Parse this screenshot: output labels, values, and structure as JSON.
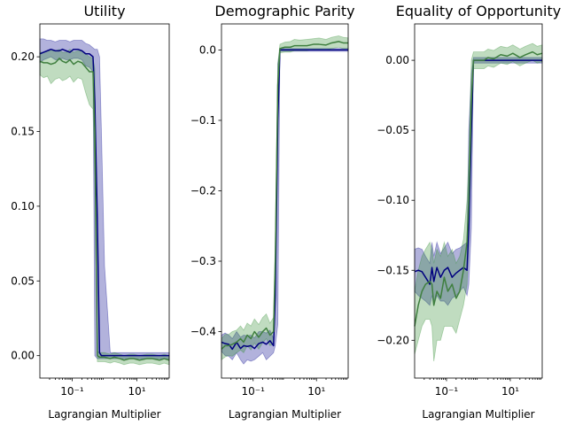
{
  "colors": {
    "blue_line": "#00007f",
    "blue_band": "#00008b",
    "green_line": "#3f7f3f",
    "green_band": "#2e8b2e"
  },
  "chart_data": [
    {
      "type": "line",
      "title": "Utility",
      "xlabel": "Lagrangian Multiplier",
      "ylabel": "",
      "xscale": "log",
      "xlim": [
        0.01,
        100
      ],
      "ylim": [
        -0.015,
        0.222
      ],
      "xticks": [
        {
          "v": 0.1,
          "label": "10⁻¹"
        },
        {
          "v": 10,
          "label": "10¹"
        }
      ],
      "yticks": [
        {
          "v": 0.2,
          "label": "0.20"
        },
        {
          "v": 0.15,
          "label": "0.15"
        },
        {
          "v": 0.1,
          "label": "0.10"
        },
        {
          "v": 0.05,
          "label": "0.05"
        },
        {
          "v": 0.0,
          "label": "0.00"
        }
      ],
      "grid": false,
      "series": [
        {
          "color_key": "blue",
          "x": [
            0.01,
            0.013,
            0.017,
            0.022,
            0.03,
            0.04,
            0.05,
            0.065,
            0.085,
            0.11,
            0.15,
            0.2,
            0.26,
            0.34,
            0.44,
            0.5,
            0.6,
            0.7,
            0.8,
            1,
            1.5,
            3,
            8,
            20,
            50,
            100
          ],
          "values": [
            0.202,
            0.203,
            0.204,
            0.205,
            0.204,
            0.204,
            0.205,
            0.204,
            0.203,
            0.205,
            0.205,
            0.204,
            0.202,
            0.202,
            0.2,
            0.17,
            0.09,
            0.002,
            0.0,
            0.0,
            0.0,
            0.0,
            0.0,
            0.0,
            0.0,
            0.0
          ],
          "lower": [
            0.196,
            0.198,
            0.199,
            0.2,
            0.198,
            0.198,
            0.199,
            0.198,
            0.198,
            0.199,
            0.199,
            0.198,
            0.194,
            0.193,
            0.19,
            0.0,
            -0.002,
            -0.002,
            -0.002,
            -0.002,
            -0.002,
            -0.002,
            -0.002,
            -0.002,
            -0.002,
            -0.002
          ],
          "upper": [
            0.212,
            0.212,
            0.211,
            0.211,
            0.21,
            0.211,
            0.211,
            0.211,
            0.21,
            0.211,
            0.211,
            0.211,
            0.209,
            0.208,
            0.206,
            0.205,
            0.205,
            0.2,
            0.15,
            0.06,
            0.002,
            0.002,
            0.002,
            0.002,
            0.002,
            0.002
          ]
        },
        {
          "color_key": "green",
          "x": [
            0.01,
            0.013,
            0.017,
            0.022,
            0.03,
            0.04,
            0.05,
            0.065,
            0.085,
            0.11,
            0.15,
            0.2,
            0.26,
            0.34,
            0.44,
            0.5,
            0.6,
            0.7,
            0.8,
            1,
            1.5,
            2,
            3,
            4,
            6,
            8,
            12,
            20,
            30,
            50,
            70,
            100
          ],
          "values": [
            0.197,
            0.196,
            0.196,
            0.195,
            0.196,
            0.199,
            0.197,
            0.196,
            0.198,
            0.195,
            0.197,
            0.196,
            0.193,
            0.19,
            0.19,
            0.15,
            0.0,
            -0.001,
            -0.001,
            -0.001,
            -0.002,
            -0.001,
            -0.002,
            -0.003,
            -0.002,
            -0.002,
            -0.003,
            -0.002,
            -0.002,
            -0.003,
            -0.002,
            -0.003
          ],
          "lower": [
            0.188,
            0.186,
            0.187,
            0.182,
            0.185,
            0.186,
            0.184,
            0.185,
            0.187,
            0.183,
            0.186,
            0.185,
            0.176,
            0.168,
            0.165,
            0.12,
            -0.004,
            -0.004,
            -0.004,
            -0.004,
            -0.005,
            -0.004,
            -0.005,
            -0.006,
            -0.005,
            -0.005,
            -0.006,
            -0.005,
            -0.005,
            -0.006,
            -0.005,
            -0.006
          ],
          "upper": [
            0.203,
            0.203,
            0.204,
            0.204,
            0.204,
            0.205,
            0.203,
            0.203,
            0.205,
            0.203,
            0.204,
            0.204,
            0.202,
            0.2,
            0.199,
            0.192,
            0.003,
            0.002,
            0.002,
            0.002,
            0.001,
            0.002,
            0.001,
            0.0,
            0.001,
            0.001,
            0.0,
            0.001,
            0.001,
            0.0,
            0.001,
            0.0
          ]
        }
      ]
    },
    {
      "type": "line",
      "title": "Demographic Parity",
      "xlabel": "Lagrangian Multiplier",
      "ylabel": "",
      "xscale": "log",
      "xlim": [
        0.01,
        100
      ],
      "ylim": [
        -0.466,
        0.037
      ],
      "xticks": [
        {
          "v": 0.1,
          "label": "10⁻¹"
        },
        {
          "v": 10,
          "label": "10¹"
        }
      ],
      "yticks": [
        {
          "v": 0.0,
          "label": "0.0"
        },
        {
          "v": -0.1,
          "label": "−0.1"
        },
        {
          "v": -0.2,
          "label": "−0.2"
        },
        {
          "v": -0.3,
          "label": "−0.3"
        },
        {
          "v": -0.4,
          "label": "−0.4"
        }
      ],
      "grid": false,
      "series": [
        {
          "color_key": "blue",
          "x": [
            0.01,
            0.013,
            0.017,
            0.022,
            0.03,
            0.04,
            0.05,
            0.065,
            0.085,
            0.11,
            0.15,
            0.2,
            0.26,
            0.34,
            0.44,
            0.5,
            0.6,
            0.7,
            1,
            2,
            5,
            10,
            20,
            50,
            100
          ],
          "values": [
            -0.415,
            -0.417,
            -0.418,
            -0.425,
            -0.415,
            -0.424,
            -0.42,
            -0.421,
            -0.42,
            -0.424,
            -0.417,
            -0.415,
            -0.418,
            -0.413,
            -0.42,
            -0.35,
            -0.1,
            0.0,
            0.0,
            0.0,
            0.0,
            0.0,
            0.0,
            0.0,
            0.0
          ],
          "lower": [
            -0.428,
            -0.434,
            -0.435,
            -0.44,
            -0.43,
            -0.44,
            -0.446,
            -0.44,
            -0.442,
            -0.44,
            -0.435,
            -0.43,
            -0.44,
            -0.435,
            -0.43,
            -0.42,
            -0.39,
            -0.002,
            -0.002,
            -0.002,
            -0.002,
            -0.002,
            -0.002,
            -0.002,
            -0.002
          ],
          "upper": [
            -0.405,
            -0.402,
            -0.405,
            -0.41,
            -0.4,
            -0.408,
            -0.405,
            -0.406,
            -0.405,
            -0.409,
            -0.4,
            -0.4,
            -0.402,
            -0.398,
            -0.41,
            -0.3,
            -0.02,
            0.002,
            0.002,
            0.002,
            0.002,
            0.002,
            0.002,
            0.002,
            0.002
          ]
        },
        {
          "color_key": "green",
          "x": [
            0.01,
            0.013,
            0.017,
            0.022,
            0.03,
            0.04,
            0.05,
            0.065,
            0.085,
            0.11,
            0.15,
            0.2,
            0.26,
            0.34,
            0.44,
            0.5,
            0.6,
            0.7,
            1,
            1.5,
            2,
            3,
            5,
            8,
            12,
            20,
            30,
            50,
            70,
            100
          ],
          "values": [
            -0.425,
            -0.42,
            -0.42,
            -0.418,
            -0.415,
            -0.41,
            -0.415,
            -0.405,
            -0.41,
            -0.4,
            -0.408,
            -0.4,
            -0.395,
            -0.405,
            -0.4,
            -0.3,
            -0.05,
            0.002,
            0.004,
            0.004,
            0.006,
            0.006,
            0.006,
            0.008,
            0.008,
            0.007,
            0.01,
            0.012,
            0.01,
            0.01
          ],
          "lower": [
            -0.44,
            -0.436,
            -0.434,
            -0.435,
            -0.43,
            -0.426,
            -0.43,
            -0.42,
            -0.426,
            -0.416,
            -0.425,
            -0.416,
            -0.41,
            -0.42,
            -0.418,
            -0.33,
            -0.08,
            -0.004,
            -0.003,
            -0.003,
            -0.001,
            -0.001,
            -0.001,
            0.001,
            0.001,
            0.0,
            0.002,
            0.004,
            0.002,
            0.002
          ],
          "upper": [
            -0.41,
            -0.404,
            -0.404,
            -0.4,
            -0.398,
            -0.392,
            -0.398,
            -0.388,
            -0.392,
            -0.382,
            -0.39,
            -0.38,
            -0.375,
            -0.388,
            -0.38,
            -0.27,
            -0.02,
            0.008,
            0.011,
            0.012,
            0.015,
            0.014,
            0.015,
            0.016,
            0.017,
            0.015,
            0.018,
            0.02,
            0.018,
            0.017
          ]
        }
      ]
    },
    {
      "type": "line",
      "title": "Equality of Opportunity",
      "xlabel": "Lagrangian Multiplier",
      "ylabel": "",
      "xscale": "log",
      "xlim": [
        0.01,
        100
      ],
      "ylim": [
        -0.227,
        0.026
      ],
      "xticks": [
        {
          "v": 0.1,
          "label": "10⁻¹"
        },
        {
          "v": 10,
          "label": "10¹"
        }
      ],
      "yticks": [
        {
          "v": 0.0,
          "label": "0.00"
        },
        {
          "v": -0.05,
          "label": "−0.05"
        },
        {
          "v": -0.1,
          "label": "−0.10"
        },
        {
          "v": -0.15,
          "label": "−0.15"
        },
        {
          "v": -0.2,
          "label": "−0.20"
        }
      ],
      "grid": false,
      "series": [
        {
          "color_key": "blue",
          "x": [
            0.01,
            0.013,
            0.017,
            0.022,
            0.03,
            0.035,
            0.04,
            0.05,
            0.065,
            0.085,
            0.11,
            0.15,
            0.2,
            0.26,
            0.34,
            0.44,
            0.5,
            0.6,
            0.7,
            1,
            2,
            5,
            10,
            20,
            50,
            100
          ],
          "values": [
            -0.151,
            -0.15,
            -0.151,
            -0.155,
            -0.16,
            -0.148,
            -0.158,
            -0.148,
            -0.155,
            -0.15,
            -0.148,
            -0.155,
            -0.152,
            -0.15,
            -0.148,
            -0.15,
            -0.12,
            -0.05,
            0.0,
            0.0,
            0.0,
            0.0,
            0.0,
            0.0,
            0.0,
            0.0
          ],
          "lower": [
            -0.165,
            -0.168,
            -0.17,
            -0.172,
            -0.175,
            -0.168,
            -0.175,
            -0.168,
            -0.172,
            -0.172,
            -0.175,
            -0.17,
            -0.168,
            -0.165,
            -0.162,
            -0.168,
            -0.16,
            -0.12,
            -0.002,
            -0.002,
            -0.002,
            -0.002,
            -0.002,
            -0.002,
            -0.002,
            -0.002
          ],
          "upper": [
            -0.135,
            -0.134,
            -0.135,
            -0.14,
            -0.145,
            -0.13,
            -0.14,
            -0.13,
            -0.138,
            -0.134,
            -0.13,
            -0.138,
            -0.135,
            -0.134,
            -0.132,
            -0.13,
            -0.05,
            -0.01,
            0.002,
            0.002,
            0.002,
            0.002,
            0.002,
            0.002,
            0.002,
            0.002
          ]
        },
        {
          "color_key": "green",
          "x": [
            0.01,
            0.013,
            0.017,
            0.022,
            0.03,
            0.035,
            0.04,
            0.05,
            0.065,
            0.085,
            0.11,
            0.15,
            0.2,
            0.26,
            0.34,
            0.44,
            0.5,
            0.6,
            0.7,
            1,
            1.5,
            2,
            3,
            5,
            8,
            12,
            20,
            30,
            50,
            70,
            100
          ],
          "values": [
            -0.19,
            -0.175,
            -0.165,
            -0.16,
            -0.158,
            -0.16,
            -0.175,
            -0.165,
            -0.17,
            -0.155,
            -0.165,
            -0.16,
            -0.17,
            -0.165,
            -0.15,
            -0.13,
            -0.1,
            -0.03,
            0.0,
            0.0,
            0.0,
            0.002,
            0.001,
            0.004,
            0.003,
            0.005,
            0.002,
            0.004,
            0.006,
            0.004,
            0.005
          ],
          "lower": [
            -0.21,
            -0.2,
            -0.19,
            -0.185,
            -0.185,
            -0.19,
            -0.215,
            -0.2,
            -0.2,
            -0.19,
            -0.19,
            -0.19,
            -0.195,
            -0.185,
            -0.175,
            -0.16,
            -0.13,
            -0.06,
            -0.006,
            -0.006,
            -0.006,
            -0.004,
            -0.005,
            -0.002,
            -0.003,
            -0.001,
            -0.004,
            -0.002,
            0.0,
            -0.002,
            -0.001
          ],
          "upper": [
            -0.165,
            -0.15,
            -0.14,
            -0.135,
            -0.13,
            -0.135,
            -0.145,
            -0.135,
            -0.14,
            -0.13,
            -0.14,
            -0.135,
            -0.145,
            -0.14,
            -0.128,
            -0.1,
            -0.07,
            0.0,
            0.006,
            0.006,
            0.006,
            0.008,
            0.007,
            0.01,
            0.009,
            0.011,
            0.008,
            0.01,
            0.012,
            0.01,
            0.011
          ]
        }
      ]
    }
  ]
}
